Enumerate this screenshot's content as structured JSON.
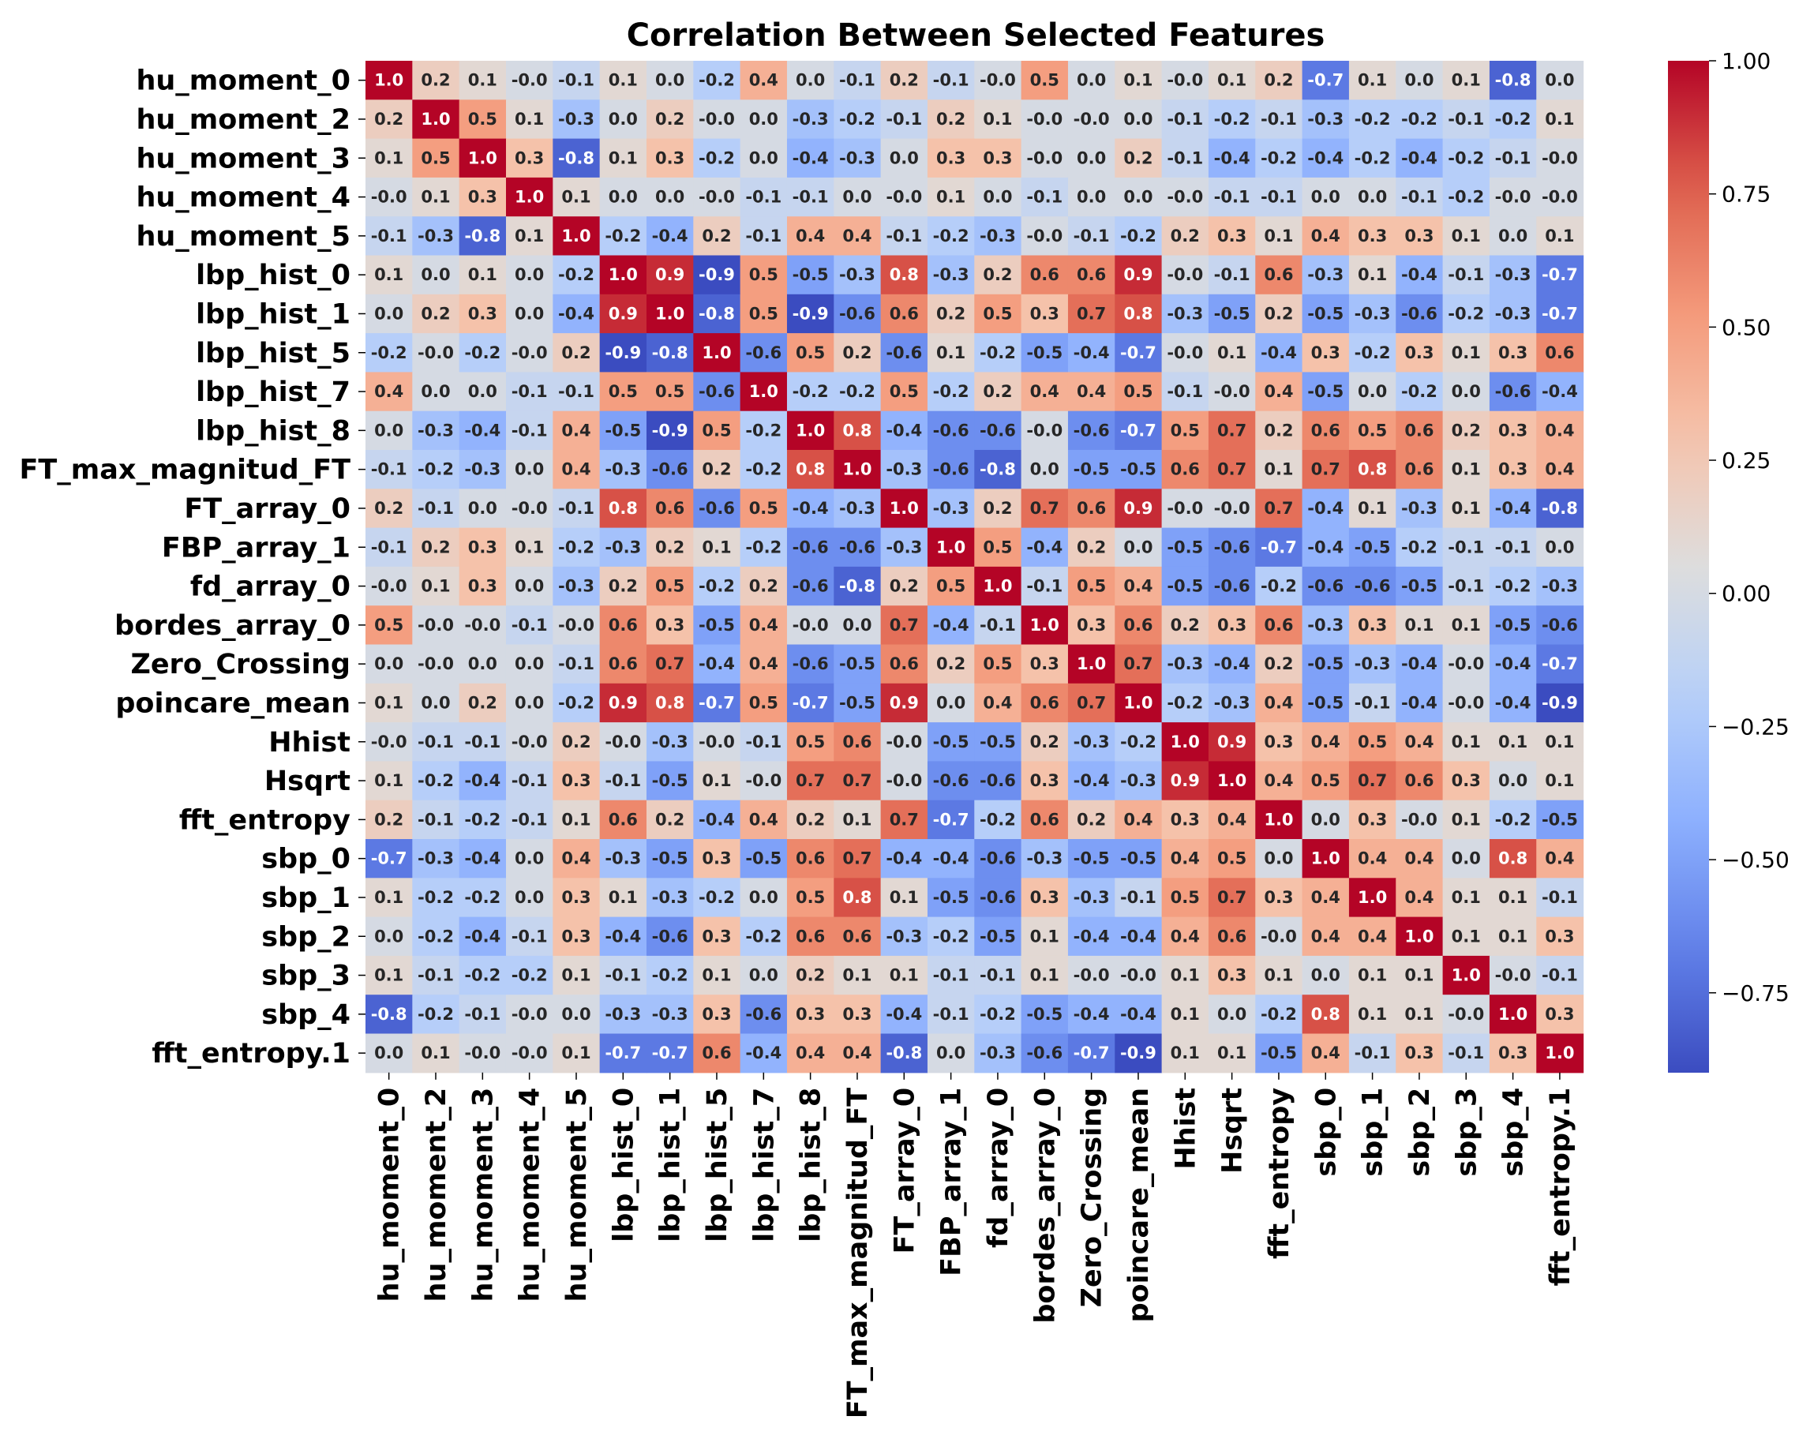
{
  "chart_data": {
    "type": "heatmap",
    "title": "Correlation Between Selected Features",
    "labels": [
      "hu_moment_0",
      "hu_moment_2",
      "hu_moment_3",
      "hu_moment_4",
      "hu_moment_5",
      "lbp_hist_0",
      "lbp_hist_1",
      "lbp_hist_5",
      "lbp_hist_7",
      "lbp_hist_8",
      "FT_max_magnitud_FT",
      "FT_array_0",
      "FBP_array_1",
      "fd_array_0",
      "bordes_array_0",
      "Zero_Crossing",
      "poincare_mean",
      "Hhist",
      "Hsqrt",
      "fft_entropy",
      "sbp_0",
      "sbp_1",
      "sbp_2",
      "sbp_3",
      "sbp_4",
      "fft_entropy.1"
    ],
    "annotations": [
      [
        "1.0",
        "0.2",
        "0.1",
        "-0.0",
        "-0.1",
        "0.1",
        "0.0",
        "-0.2",
        "0.4",
        "0.0",
        "-0.1",
        "0.2",
        "-0.1",
        "-0.0",
        "0.5",
        "0.0",
        "0.1",
        "-0.0",
        "0.1",
        "0.2",
        "-0.7",
        "0.1",
        "0.0",
        "0.1",
        "-0.8",
        "0.0"
      ],
      [
        "0.2",
        "1.0",
        "0.5",
        "0.1",
        "-0.3",
        "0.0",
        "0.2",
        "-0.0",
        "0.0",
        "-0.3",
        "-0.2",
        "-0.1",
        "0.2",
        "0.1",
        "-0.0",
        "-0.0",
        "0.0",
        "-0.1",
        "-0.2",
        "-0.1",
        "-0.3",
        "-0.2",
        "-0.2",
        "-0.1",
        "-0.2",
        "0.1"
      ],
      [
        "0.1",
        "0.5",
        "1.0",
        "0.3",
        "-0.8",
        "0.1",
        "0.3",
        "-0.2",
        "0.0",
        "-0.4",
        "-0.3",
        "0.0",
        "0.3",
        "0.3",
        "-0.0",
        "0.0",
        "0.2",
        "-0.1",
        "-0.4",
        "-0.2",
        "-0.4",
        "-0.2",
        "-0.4",
        "-0.2",
        "-0.1",
        "-0.0"
      ],
      [
        "-0.0",
        "0.1",
        "0.3",
        "1.0",
        "0.1",
        "0.0",
        "0.0",
        "-0.0",
        "-0.1",
        "-0.1",
        "0.0",
        "-0.0",
        "0.1",
        "0.0",
        "-0.1",
        "0.0",
        "0.0",
        "-0.0",
        "-0.1",
        "-0.1",
        "0.0",
        "0.0",
        "-0.1",
        "-0.2",
        "-0.0",
        "-0.0"
      ],
      [
        "-0.1",
        "-0.3",
        "-0.8",
        "0.1",
        "1.0",
        "-0.2",
        "-0.4",
        "0.2",
        "-0.1",
        "0.4",
        "0.4",
        "-0.1",
        "-0.2",
        "-0.3",
        "-0.0",
        "-0.1",
        "-0.2",
        "0.2",
        "0.3",
        "0.1",
        "0.4",
        "0.3",
        "0.3",
        "0.1",
        "0.0",
        "0.1"
      ],
      [
        "0.1",
        "0.0",
        "0.1",
        "0.0",
        "-0.2",
        "1.0",
        "0.9",
        "-0.9",
        "0.5",
        "-0.5",
        "-0.3",
        "0.8",
        "-0.3",
        "0.2",
        "0.6",
        "0.6",
        "0.9",
        "-0.0",
        "-0.1",
        "0.6",
        "-0.3",
        "0.1",
        "-0.4",
        "-0.1",
        "-0.3",
        "-0.7"
      ],
      [
        "0.0",
        "0.2",
        "0.3",
        "0.0",
        "-0.4",
        "0.9",
        "1.0",
        "-0.8",
        "0.5",
        "-0.9",
        "-0.6",
        "0.6",
        "0.2",
        "0.5",
        "0.3",
        "0.7",
        "0.8",
        "-0.3",
        "-0.5",
        "0.2",
        "-0.5",
        "-0.3",
        "-0.6",
        "-0.2",
        "-0.3",
        "-0.7"
      ],
      [
        "-0.2",
        "-0.0",
        "-0.2",
        "-0.0",
        "0.2",
        "-0.9",
        "-0.8",
        "1.0",
        "-0.6",
        "0.5",
        "0.2",
        "-0.6",
        "0.1",
        "-0.2",
        "-0.5",
        "-0.4",
        "-0.7",
        "-0.0",
        "0.1",
        "-0.4",
        "0.3",
        "-0.2",
        "0.3",
        "0.1",
        "0.3",
        "0.6"
      ],
      [
        "0.4",
        "0.0",
        "0.0",
        "-0.1",
        "-0.1",
        "0.5",
        "0.5",
        "-0.6",
        "1.0",
        "-0.2",
        "-0.2",
        "0.5",
        "-0.2",
        "0.2",
        "0.4",
        "0.4",
        "0.5",
        "-0.1",
        "-0.0",
        "0.4",
        "-0.5",
        "0.0",
        "-0.2",
        "0.0",
        "-0.6",
        "-0.4"
      ],
      [
        "0.0",
        "-0.3",
        "-0.4",
        "-0.1",
        "0.4",
        "-0.5",
        "-0.9",
        "0.5",
        "-0.2",
        "1.0",
        "0.8",
        "-0.4",
        "-0.6",
        "-0.6",
        "-0.0",
        "-0.6",
        "-0.7",
        "0.5",
        "0.7",
        "0.2",
        "0.6",
        "0.5",
        "0.6",
        "0.2",
        "0.3",
        "0.4"
      ],
      [
        "-0.1",
        "-0.2",
        "-0.3",
        "0.0",
        "0.4",
        "-0.3",
        "-0.6",
        "0.2",
        "-0.2",
        "0.8",
        "1.0",
        "-0.3",
        "-0.6",
        "-0.8",
        "0.0",
        "-0.5",
        "-0.5",
        "0.6",
        "0.7",
        "0.1",
        "0.7",
        "0.8",
        "0.6",
        "0.1",
        "0.3",
        "0.4"
      ],
      [
        "0.2",
        "-0.1",
        "0.0",
        "-0.0",
        "-0.1",
        "0.8",
        "0.6",
        "-0.6",
        "0.5",
        "-0.4",
        "-0.3",
        "1.0",
        "-0.3",
        "0.2",
        "0.7",
        "0.6",
        "0.9",
        "-0.0",
        "-0.0",
        "0.7",
        "-0.4",
        "0.1",
        "-0.3",
        "0.1",
        "-0.4",
        "-0.8"
      ],
      [
        "-0.1",
        "0.2",
        "0.3",
        "0.1",
        "-0.2",
        "-0.3",
        "0.2",
        "0.1",
        "-0.2",
        "-0.6",
        "-0.6",
        "-0.3",
        "1.0",
        "0.5",
        "-0.4",
        "0.2",
        "0.0",
        "-0.5",
        "-0.6",
        "-0.7",
        "-0.4",
        "-0.5",
        "-0.2",
        "-0.1",
        "-0.1",
        "0.0"
      ],
      [
        "-0.0",
        "0.1",
        "0.3",
        "0.0",
        "-0.3",
        "0.2",
        "0.5",
        "-0.2",
        "0.2",
        "-0.6",
        "-0.8",
        "0.2",
        "0.5",
        "1.0",
        "-0.1",
        "0.5",
        "0.4",
        "-0.5",
        "-0.6",
        "-0.2",
        "-0.6",
        "-0.6",
        "-0.5",
        "-0.1",
        "-0.2",
        "-0.3"
      ],
      [
        "0.5",
        "-0.0",
        "-0.0",
        "-0.1",
        "-0.0",
        "0.6",
        "0.3",
        "-0.5",
        "0.4",
        "-0.0",
        "0.0",
        "0.7",
        "-0.4",
        "-0.1",
        "1.0",
        "0.3",
        "0.6",
        "0.2",
        "0.3",
        "0.6",
        "-0.3",
        "0.3",
        "0.1",
        "0.1",
        "-0.5",
        "-0.6"
      ],
      [
        "0.0",
        "-0.0",
        "0.0",
        "0.0",
        "-0.1",
        "0.6",
        "0.7",
        "-0.4",
        "0.4",
        "-0.6",
        "-0.5",
        "0.6",
        "0.2",
        "0.5",
        "0.3",
        "1.0",
        "0.7",
        "-0.3",
        "-0.4",
        "0.2",
        "-0.5",
        "-0.3",
        "-0.4",
        "-0.0",
        "-0.4",
        "-0.7"
      ],
      [
        "0.1",
        "0.0",
        "0.2",
        "0.0",
        "-0.2",
        "0.9",
        "0.8",
        "-0.7",
        "0.5",
        "-0.7",
        "-0.5",
        "0.9",
        "0.0",
        "0.4",
        "0.6",
        "0.7",
        "1.0",
        "-0.2",
        "-0.3",
        "0.4",
        "-0.5",
        "-0.1",
        "-0.4",
        "-0.0",
        "-0.4",
        "-0.9"
      ],
      [
        "-0.0",
        "-0.1",
        "-0.1",
        "-0.0",
        "0.2",
        "-0.0",
        "-0.3",
        "-0.0",
        "-0.1",
        "0.5",
        "0.6",
        "-0.0",
        "-0.5",
        "-0.5",
        "0.2",
        "-0.3",
        "-0.2",
        "1.0",
        "0.9",
        "0.3",
        "0.4",
        "0.5",
        "0.4",
        "0.1",
        "0.1",
        "0.1"
      ],
      [
        "0.1",
        "-0.2",
        "-0.4",
        "-0.1",
        "0.3",
        "-0.1",
        "-0.5",
        "0.1",
        "-0.0",
        "0.7",
        "0.7",
        "-0.0",
        "-0.6",
        "-0.6",
        "0.3",
        "-0.4",
        "-0.3",
        "0.9",
        "1.0",
        "0.4",
        "0.5",
        "0.7",
        "0.6",
        "0.3",
        "0.0",
        "0.1"
      ],
      [
        "0.2",
        "-0.1",
        "-0.2",
        "-0.1",
        "0.1",
        "0.6",
        "0.2",
        "-0.4",
        "0.4",
        "0.2",
        "0.1",
        "0.7",
        "-0.7",
        "-0.2",
        "0.6",
        "0.2",
        "0.4",
        "0.3",
        "0.4",
        "1.0",
        "0.0",
        "0.3",
        "-0.0",
        "0.1",
        "-0.2",
        "-0.5"
      ],
      [
        "-0.7",
        "-0.3",
        "-0.4",
        "0.0",
        "0.4",
        "-0.3",
        "-0.5",
        "0.3",
        "-0.5",
        "0.6",
        "0.7",
        "-0.4",
        "-0.4",
        "-0.6",
        "-0.3",
        "-0.5",
        "-0.5",
        "0.4",
        "0.5",
        "0.0",
        "1.0",
        "0.4",
        "0.4",
        "0.0",
        "0.8",
        "0.4"
      ],
      [
        "0.1",
        "-0.2",
        "-0.2",
        "0.0",
        "0.3",
        "0.1",
        "-0.3",
        "-0.2",
        "0.0",
        "0.5",
        "0.8",
        "0.1",
        "-0.5",
        "-0.6",
        "0.3",
        "-0.3",
        "-0.1",
        "0.5",
        "0.7",
        "0.3",
        "0.4",
        "1.0",
        "0.4",
        "0.1",
        "0.1",
        "-0.1"
      ],
      [
        "0.0",
        "-0.2",
        "-0.4",
        "-0.1",
        "0.3",
        "-0.4",
        "-0.6",
        "0.3",
        "-0.2",
        "0.6",
        "0.6",
        "-0.3",
        "-0.2",
        "-0.5",
        "0.1",
        "-0.4",
        "-0.4",
        "0.4",
        "0.6",
        "-0.0",
        "0.4",
        "0.4",
        "1.0",
        "0.1",
        "0.1",
        "0.3"
      ],
      [
        "0.1",
        "-0.1",
        "-0.2",
        "-0.2",
        "0.1",
        "-0.1",
        "-0.2",
        "0.1",
        "0.0",
        "0.2",
        "0.1",
        "0.1",
        "-0.1",
        "-0.1",
        "0.1",
        "-0.0",
        "-0.0",
        "0.1",
        "0.3",
        "0.1",
        "0.0",
        "0.1",
        "0.1",
        "1.0",
        "-0.0",
        "-0.1"
      ],
      [
        "-0.8",
        "-0.2",
        "-0.1",
        "-0.0",
        "0.0",
        "-0.3",
        "-0.3",
        "0.3",
        "-0.6",
        "0.3",
        "0.3",
        "-0.4",
        "-0.1",
        "-0.2",
        "-0.5",
        "-0.4",
        "-0.4",
        "0.1",
        "0.0",
        "-0.2",
        "0.8",
        "0.1",
        "0.1",
        "-0.0",
        "1.0",
        "0.3"
      ],
      [
        "0.0",
        "0.1",
        "-0.0",
        "-0.0",
        "0.1",
        "-0.7",
        "-0.7",
        "0.6",
        "-0.4",
        "0.4",
        "0.4",
        "-0.8",
        "0.0",
        "-0.3",
        "-0.6",
        "-0.7",
        "-0.9",
        "0.1",
        "0.1",
        "-0.5",
        "0.4",
        "-0.1",
        "0.3",
        "-0.1",
        "0.3",
        "1.0"
      ]
    ],
    "colormap": "coolwarm",
    "colorbar": {
      "range": [
        -0.9,
        1.0
      ],
      "ticks": [
        1.0,
        0.75,
        0.5,
        0.25,
        0.0,
        -0.25,
        -0.5,
        -0.75
      ],
      "tick_labels": [
        "1.00",
        "0.75",
        "0.50",
        "0.25",
        "0.00",
        "−0.25",
        "−0.50",
        "−0.75"
      ]
    },
    "grid": false,
    "legend": "colorbar right"
  }
}
